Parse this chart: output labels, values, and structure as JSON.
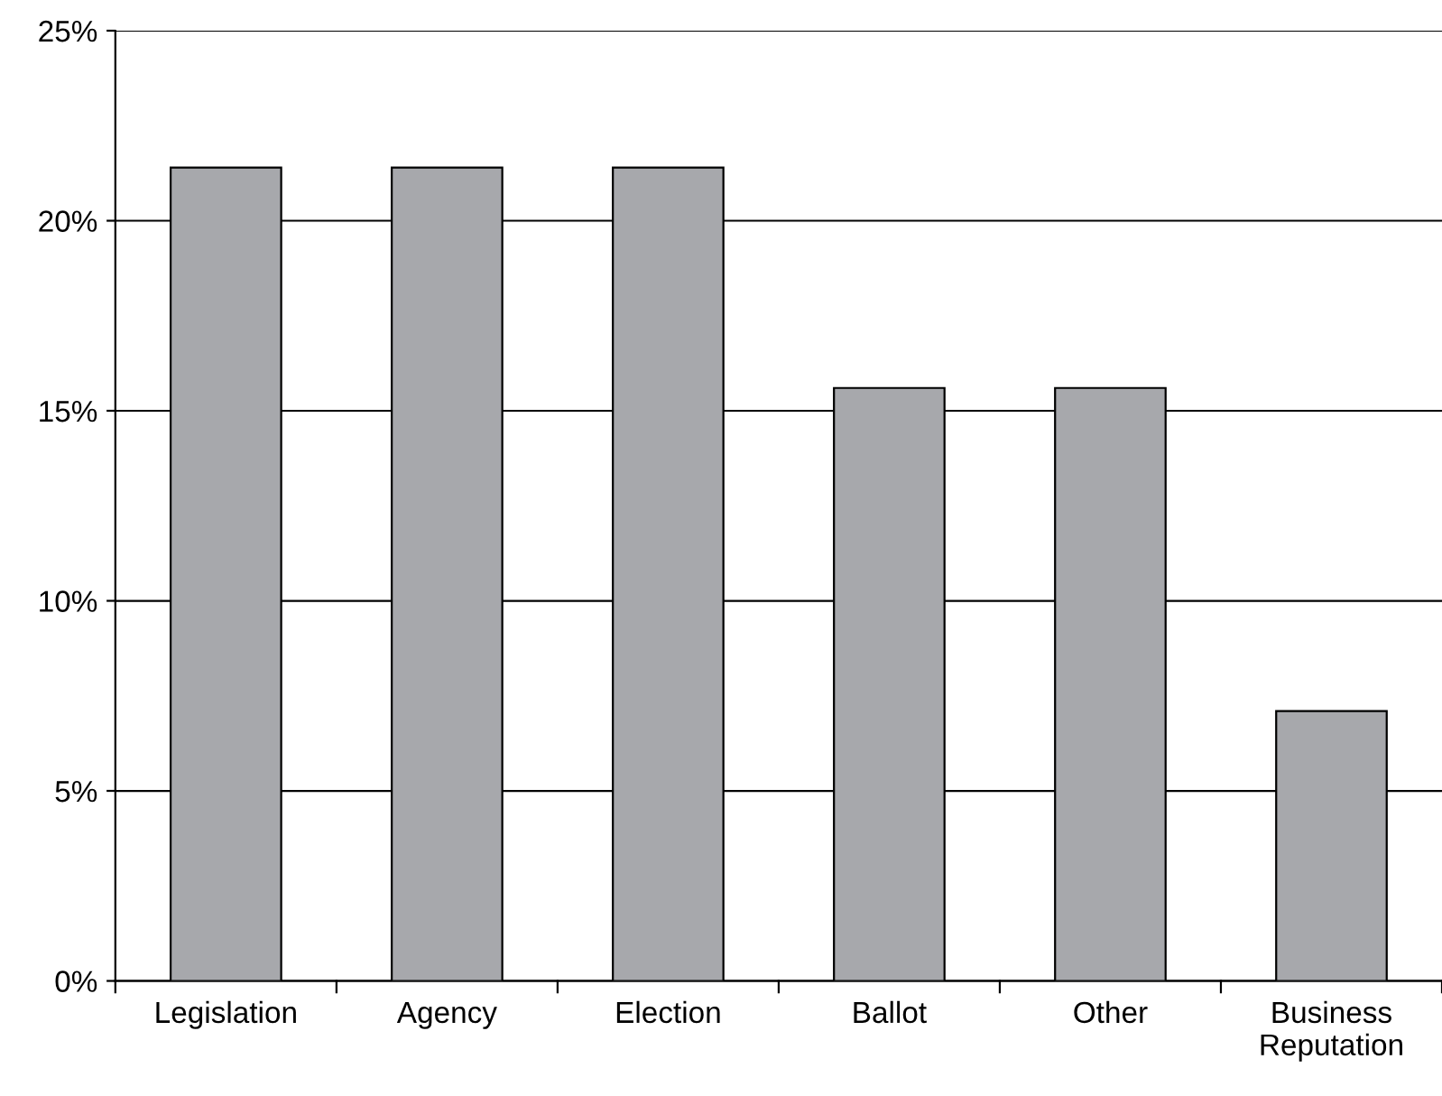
{
  "chart_data": {
    "type": "bar",
    "categories": [
      "Legislation",
      "Agency",
      "Election",
      "Ballot",
      "Other",
      "Business\nReputation"
    ],
    "values": [
      21.4,
      21.4,
      21.4,
      15.6,
      15.6,
      7.1
    ],
    "color": "#a7a8ac",
    "ylim": [
      0,
      25
    ],
    "yticks": [
      {
        "value": 0,
        "label": "0%"
      },
      {
        "value": 5,
        "label": "5%"
      },
      {
        "value": 10,
        "label": "10%"
      },
      {
        "value": 15,
        "label": "15%"
      },
      {
        "value": 20,
        "label": "20%"
      },
      {
        "value": 25,
        "label": "25%"
      }
    ],
    "grid": "y"
  }
}
